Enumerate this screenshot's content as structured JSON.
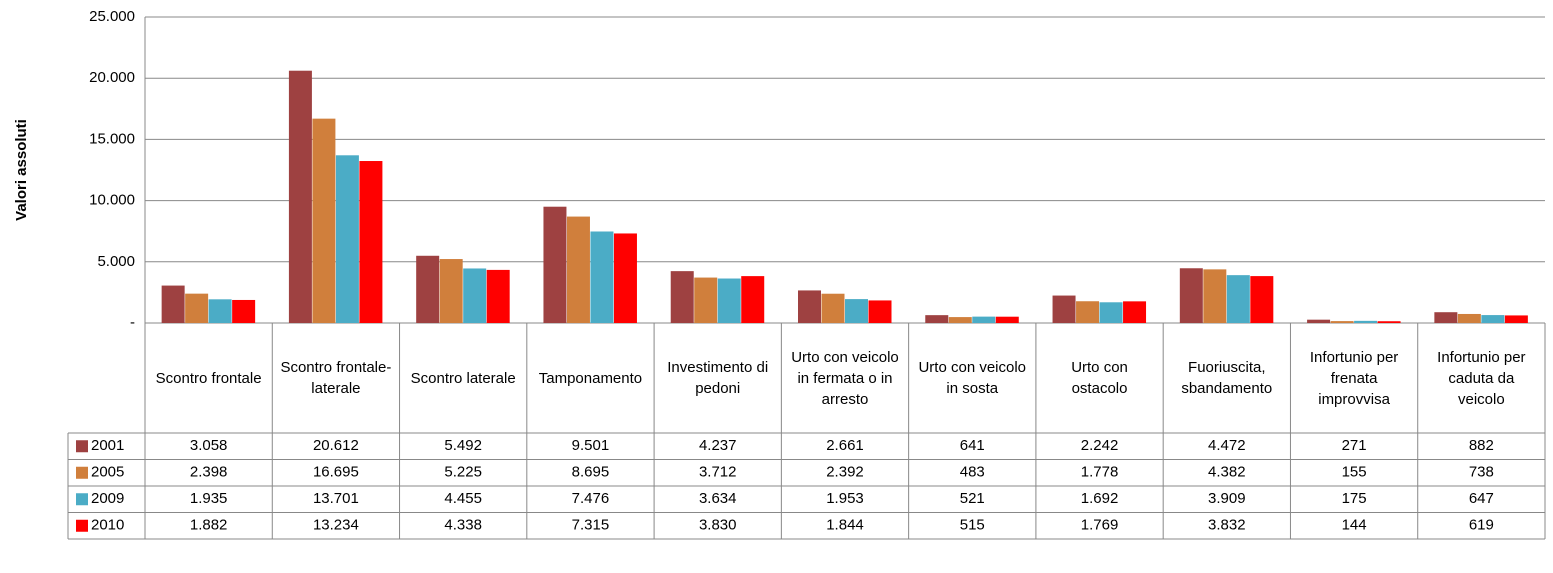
{
  "chart_data": {
    "type": "bar",
    "y_label": "Valori assoluti",
    "categories": [
      "Scontro frontale",
      "Scontro frontale-laterale",
      "Scontro laterale",
      "Tamponamento",
      "Investimento di pedoni",
      "Urto con veicolo in fermata o in arresto",
      "Urto con veicolo in sosta",
      "Urto con ostacolo",
      "Fuoriuscita, sbandamento",
      "Infortunio per frenata improvvisa",
      "Infortunio per caduta da veicolo"
    ],
    "series": [
      {
        "name": "2001",
        "color": "#9e4141",
        "values": [
          3058,
          20612,
          5492,
          9501,
          4237,
          2661,
          641,
          2242,
          4472,
          271,
          882
        ],
        "value_labels": [
          "3.058",
          "20.612",
          "5.492",
          "9.501",
          "4.237",
          "2.661",
          "641",
          "2.242",
          "4.472",
          "271",
          "882"
        ]
      },
      {
        "name": "2005",
        "color": "#d07f3c",
        "values": [
          2398,
          16695,
          5225,
          8695,
          3712,
          2392,
          483,
          1778,
          4382,
          155,
          738
        ],
        "value_labels": [
          "2.398",
          "16.695",
          "5.225",
          "8.695",
          "3.712",
          "2.392",
          "483",
          "1.778",
          "4.382",
          "155",
          "738"
        ]
      },
      {
        "name": "2009",
        "color": "#4bacc6",
        "values": [
          1935,
          13701,
          4455,
          7476,
          3634,
          1953,
          521,
          1692,
          3909,
          175,
          647
        ],
        "value_labels": [
          "1.935",
          "13.701",
          "4.455",
          "7.476",
          "3.634",
          "1.953",
          "521",
          "1.692",
          "3.909",
          "175",
          "647"
        ]
      },
      {
        "name": "2010",
        "color": "#ff0000",
        "values": [
          1882,
          13234,
          4338,
          7315,
          3830,
          1844,
          515,
          1769,
          3832,
          144,
          619
        ],
        "value_labels": [
          "1.882",
          "13.234",
          "4.338",
          "7.315",
          "3.830",
          "1.844",
          "515",
          "1.769",
          "3.832",
          "144",
          "619"
        ]
      }
    ],
    "ylim": [
      0,
      25000
    ],
    "yticks": [
      {
        "value": 0,
        "label": "-"
      },
      {
        "value": 5000,
        "label": "5.000"
      },
      {
        "value": 10000,
        "label": "10.000"
      },
      {
        "value": 15000,
        "label": "15.000"
      },
      {
        "value": 20000,
        "label": "20.000"
      },
      {
        "value": 25000,
        "label": "25.000"
      }
    ],
    "grid": true
  }
}
